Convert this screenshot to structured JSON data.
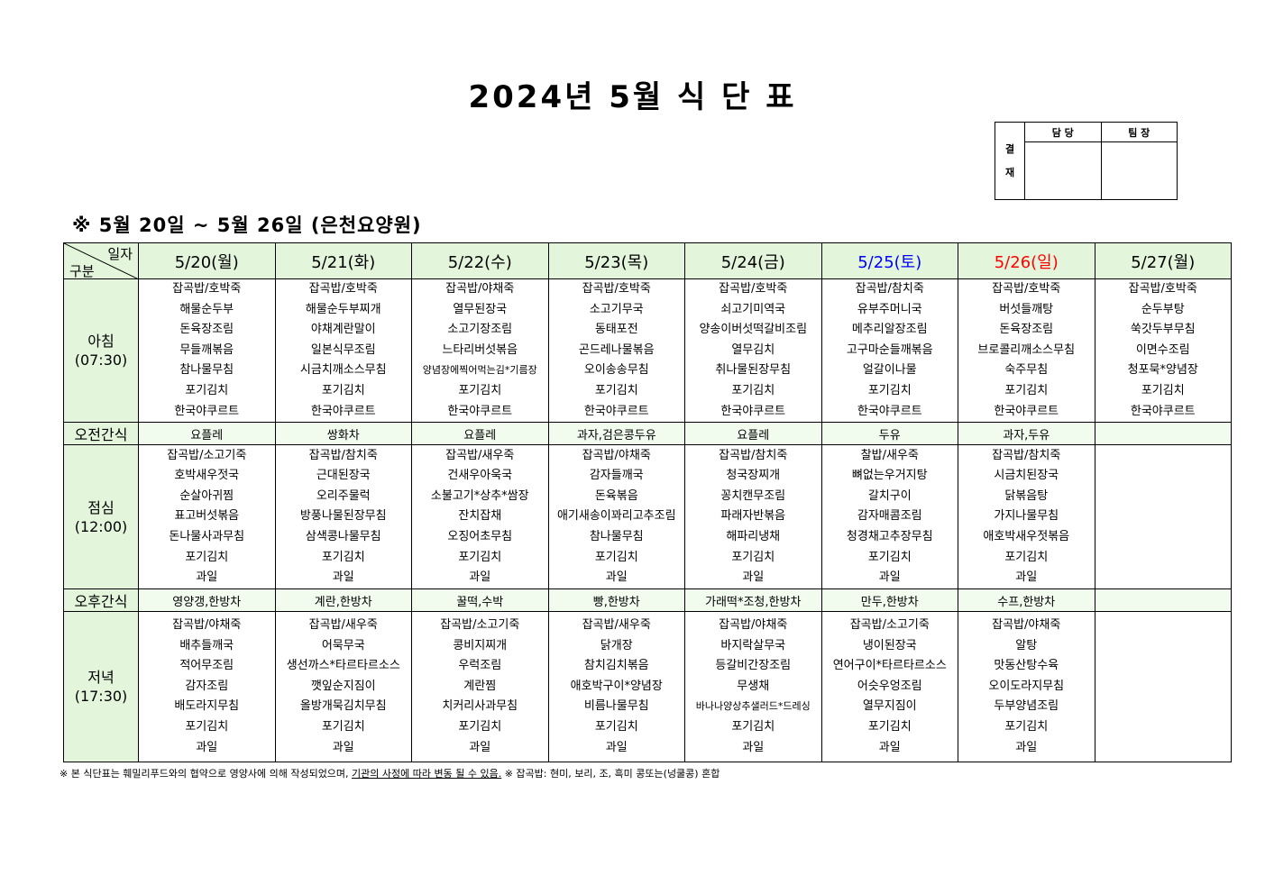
{
  "title": "2024년 5월 식 단 표",
  "approval": {
    "side": "결\n재",
    "col1": "담 당",
    "col2": "팀 장"
  },
  "subtitle": "※ 5월 20일 ~ 5월 26일 (은천요양원)",
  "corner": {
    "top": "일자",
    "bottom": "구분"
  },
  "colors": {
    "header_bg": "#e3f6dc",
    "saturday": "#0000ff",
    "sunday": "#ff0000"
  },
  "days": [
    {
      "label": "5/20(월)",
      "color": "#000000"
    },
    {
      "label": "5/21(화)",
      "color": "#000000"
    },
    {
      "label": "5/22(수)",
      "color": "#000000"
    },
    {
      "label": "5/23(목)",
      "color": "#000000"
    },
    {
      "label": "5/24(금)",
      "color": "#000000"
    },
    {
      "label": "5/25(토)",
      "color": "#0000ff"
    },
    {
      "label": "5/26(일)",
      "color": "#ff0000"
    },
    {
      "label": "5/27(월)",
      "color": "#000000"
    }
  ],
  "rows": [
    {
      "type": "meal",
      "name": "아침",
      "time": "(07:30)",
      "cells": [
        [
          "잡곡밥/호박죽",
          "해물순두부",
          "돈육장조림",
          "무들깨볶음",
          "참나물무침",
          "포기김치",
          "한국야쿠르트"
        ],
        [
          "잡곡밥/호박죽",
          "해물순두부찌개",
          "야채계란말이",
          "일본식무조림",
          "시금치깨소스무침",
          "포기김치",
          "한국야쿠르트"
        ],
        [
          "잡곡밥/야채죽",
          "열무된장국",
          "소고기장조림",
          "느타리버섯볶음",
          "양념장에찍어먹는김*기름장",
          "포기김치",
          "한국야쿠르트"
        ],
        [
          "잡곡밥/호박죽",
          "소고기무국",
          "동태포전",
          "곤드레나물볶음",
          "오이송송무침",
          "포기김치",
          "한국야쿠르트"
        ],
        [
          "잡곡밥/호박죽",
          "쇠고기미역국",
          "양송이버섯떡갈비조림",
          "열무김치",
          "취나물된장무침",
          "포기김치",
          "한국야쿠르트"
        ],
        [
          "잡곡밥/참치죽",
          "유부주머니국",
          "메추리알장조림",
          "고구마순들깨볶음",
          "얼갈이나물",
          "포기김치",
          "한국야쿠르트"
        ],
        [
          "잡곡밥/호박죽",
          "버섯들깨탕",
          "돈육장조림",
          "브로콜리깨소스무침",
          "숙주무침",
          "포기김치",
          "한국야쿠르트"
        ],
        [
          "잡곡밥/호박죽",
          "순두부탕",
          "쑥갓두부무침",
          "이면수조림",
          "청포묵*양념장",
          "포기김치",
          "한국야쿠르트"
        ]
      ]
    },
    {
      "type": "snack",
      "name": "오전간식",
      "cells": [
        "요플레",
        "쌍화차",
        "요플레",
        "과자,검은콩두유",
        "요플레",
        "두유",
        "과자,두유",
        ""
      ]
    },
    {
      "type": "meal",
      "name": "점심",
      "time": "(12:00)",
      "cells": [
        [
          "잡곡밥/소고기죽",
          "호박새우젓국",
          "순살아귀찜",
          "표고버섯볶음",
          "돈나물사과무침",
          "포기김치",
          "과일"
        ],
        [
          "잡곡밥/참치죽",
          "근대된장국",
          "오리주물럭",
          "방풍나물된장무침",
          "삼색콩나물무침",
          "포기김치",
          "과일"
        ],
        [
          "잡곡밥/새우죽",
          "건새우아욱국",
          "소불고기*상추*쌈장",
          "잔치잡채",
          "오징어초무침",
          "포기김치",
          "과일"
        ],
        [
          "잡곡밥/야채죽",
          "감자들깨국",
          "돈육볶음",
          "애기새송이꽈리고추조림",
          "참나물무침",
          "포기김치",
          "과일"
        ],
        [
          "잡곡밥/참치죽",
          "청국장찌개",
          "꽁치캔무조림",
          "파래자반볶음",
          "해파리냉채",
          "포기김치",
          "과일"
        ],
        [
          "찰밥/새우죽",
          "뼈없는우거지탕",
          "갈치구이",
          "감자매콤조림",
          "청경채고추장무침",
          "포기김치",
          "과일"
        ],
        [
          "잡곡밥/참치죽",
          "시금치된장국",
          "닭볶음탕",
          "가지나물무침",
          "애호박새우젓볶음",
          "포기김치",
          "과일"
        ],
        []
      ]
    },
    {
      "type": "snack",
      "name": "오후간식",
      "cells": [
        "영양갱,한방차",
        "계란,한방차",
        "꿀떡,수박",
        "빵,한방차",
        "가래떡*조청,한방차",
        "만두,한방차",
        "수프,한방차",
        ""
      ]
    },
    {
      "type": "meal",
      "name": "저녁",
      "time": "(17:30)",
      "cells": [
        [
          "잡곡밥/야채죽",
          "배추들깨국",
          "적어무조림",
          "감자조림",
          "배도라지무침",
          "포기김치",
          "과일"
        ],
        [
          "잡곡밥/새우죽",
          "어묵무국",
          "생선까스*타르타르소스",
          "깻잎순지짐이",
          "올방개묵김치무침",
          "포기김치",
          "과일"
        ],
        [
          "잡곡밥/소고기죽",
          "콩비지찌개",
          "우럭조림",
          "계란찜",
          "치커리사과무침",
          "포기김치",
          "과일"
        ],
        [
          "잡곡밥/새우죽",
          "닭개장",
          "참치김치볶음",
          "애호박구이*양념장",
          "비름나물무침",
          "포기김치",
          "과일"
        ],
        [
          "잡곡밥/야채죽",
          "바지락살무국",
          "등갈비간장조림",
          "무생채",
          "바나나양상추샐러드*드레싱",
          "포기김치",
          "과일"
        ],
        [
          "잡곡밥/소고기죽",
          "냉이된장국",
          "연어구이*타르타르소스",
          "어슷우엉조림",
          "열무지짐이",
          "포기김치",
          "과일"
        ],
        [
          "잡곡밥/야채죽",
          "알탕",
          "맛동산탕수육",
          "오이도라지무침",
          "두부양념조림",
          "포기김치",
          "과일"
        ],
        []
      ]
    }
  ],
  "footnote": {
    "part1": "※ 본 식단표는 훼밀리푸드와의 협약으로 영양사에 의해 작성되었으며, ",
    "underlined": "기관의 사정에 따라 변동 될 수 있음.",
    "part2": " ※ 잡곡밥: 현미, 보리, 조, 흑미 콩또는(넝쿨콩) 혼합"
  }
}
